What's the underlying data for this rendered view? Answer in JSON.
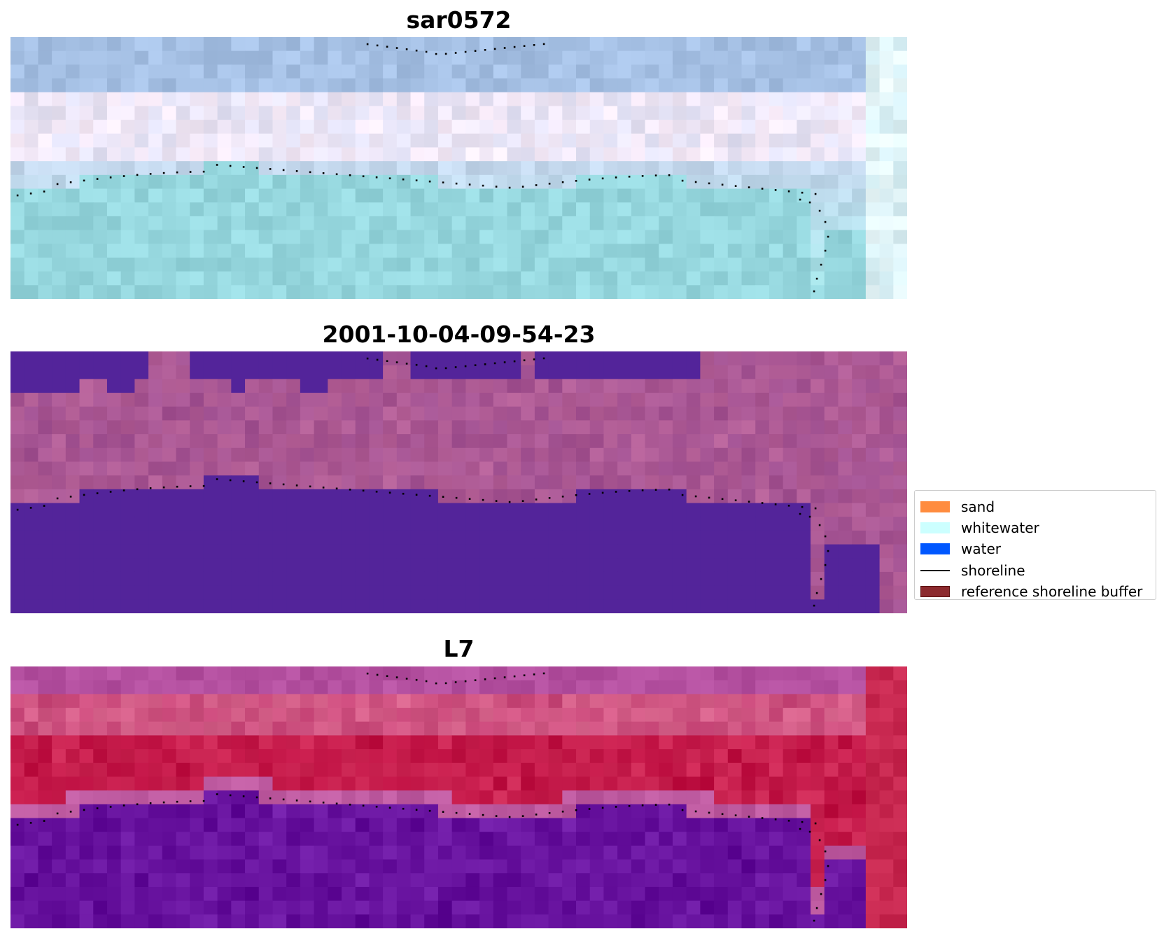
{
  "panels": [
    {
      "title": "sar0572",
      "style": "rgb"
    },
    {
      "title": "2001-10-04-09-54-23",
      "style": "classified"
    },
    {
      "title": "L7",
      "style": "index"
    }
  ],
  "legend": {
    "items": [
      {
        "label": "sand",
        "color": "#ff8c3f",
        "kind": "patch"
      },
      {
        "label": "whitewater",
        "color": "#ccffff",
        "kind": "patch"
      },
      {
        "label": "water",
        "color": "#0057ff",
        "kind": "patch"
      },
      {
        "label": "shoreline",
        "color": "#000000",
        "kind": "line"
      },
      {
        "label": "reference shoreline buffer",
        "color": "#8c2a2e",
        "kind": "patch",
        "edge": "#5a1010"
      }
    ]
  },
  "colors": {
    "classified_water": "#53249a",
    "classified_other": "#a25293",
    "shoreline_dots": "#000000"
  }
}
